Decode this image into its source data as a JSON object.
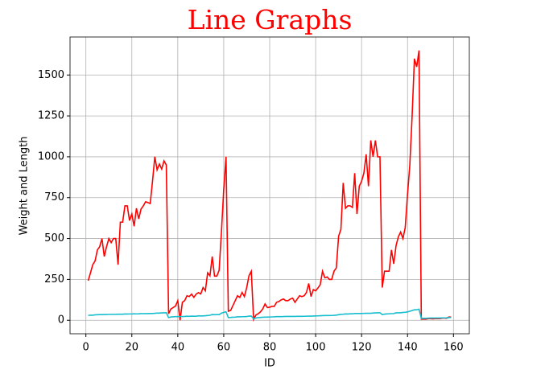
{
  "chart_data": {
    "type": "line",
    "title": "Line Graphs",
    "title_color": "#ff0000",
    "xlabel": "ID",
    "ylabel": "Weight and Length",
    "x": [
      1,
      2,
      3,
      4,
      5,
      6,
      7,
      8,
      9,
      10,
      11,
      12,
      13,
      14,
      15,
      16,
      17,
      18,
      19,
      20,
      21,
      22,
      23,
      24,
      25,
      26,
      27,
      28,
      29,
      30,
      31,
      32,
      33,
      34,
      35,
      36,
      37,
      38,
      39,
      40,
      41,
      42,
      43,
      44,
      45,
      46,
      47,
      48,
      49,
      50,
      51,
      52,
      53,
      54,
      55,
      56,
      57,
      58,
      59,
      60,
      61,
      62,
      63,
      64,
      65,
      66,
      67,
      68,
      69,
      70,
      71,
      72,
      73,
      74,
      75,
      76,
      77,
      78,
      79,
      80,
      81,
      82,
      83,
      84,
      85,
      86,
      87,
      88,
      89,
      90,
      91,
      92,
      93,
      94,
      95,
      96,
      97,
      98,
      99,
      100,
      101,
      102,
      103,
      104,
      105,
      106,
      107,
      108,
      109,
      110,
      111,
      112,
      113,
      114,
      115,
      116,
      117,
      118,
      119,
      120,
      121,
      122,
      123,
      124,
      125,
      126,
      127,
      128,
      129,
      130,
      131,
      132,
      133,
      134,
      135,
      136,
      137,
      138,
      139,
      140,
      141,
      142,
      143,
      144,
      145,
      146,
      147,
      148,
      149,
      150,
      151,
      152,
      153,
      154,
      155,
      156,
      157,
      158,
      159
    ],
    "series": [
      {
        "color": "#ff0000",
        "values": [
          242,
          290,
          340,
          363,
          430,
          450,
          500,
          390,
          450,
          500,
          475,
          500,
          500,
          340,
          600,
          600,
          700,
          700,
          610,
          650,
          575,
          685,
          620,
          680,
          700,
          725,
          720,
          714,
          850,
          1000,
          920,
          955,
          925,
          975,
          950,
          40,
          69,
          78,
          87,
          120,
          0,
          110,
          120,
          150,
          145,
          160,
          140,
          160,
          169,
          161,
          200,
          180,
          290,
          272,
          390,
          270,
          270,
          306,
          540,
          800,
          1000,
          55,
          60,
          90,
          120,
          150,
          140,
          170,
          145,
          200,
          273,
          300,
          5.9,
          32,
          40,
          51.5,
          70,
          100,
          78,
          80,
          85,
          85,
          110,
          115,
          125,
          130,
          120,
          120,
          130,
          135,
          110,
          130,
          150,
          145,
          150,
          170,
          225,
          145,
          188,
          180,
          197,
          218,
          300,
          260,
          265,
          250,
          250,
          300,
          320,
          514,
          556,
          840,
          685,
          700,
          700,
          690,
          900,
          650,
          820,
          850,
          900,
          1015,
          820,
          1100,
          1000,
          1100,
          1000,
          1000,
          200,
          300,
          300,
          300,
          430,
          345,
          456,
          510,
          540,
          500,
          567,
          770,
          950,
          1250,
          1600,
          1550,
          1650,
          6.7,
          7.5,
          7,
          9.7,
          9.8,
          8.7,
          10,
          9.9,
          9.8,
          12.2,
          13.4,
          12.2,
          19.7,
          19.9
        ]
      },
      {
        "color": "#17becf",
        "values": [
          30,
          31.2,
          31.1,
          33.5,
          34,
          34.7,
          34.5,
          35,
          35.1,
          36.2,
          36.2,
          36.2,
          36.4,
          37.3,
          37.2,
          37.2,
          38.3,
          38.5,
          38.6,
          38.7,
          39.5,
          39.2,
          39.7,
          40.6,
          40.5,
          40.9,
          40.6,
          41.5,
          41.6,
          42.6,
          44.1,
          44,
          45.3,
          45.9,
          46.5,
          16.2,
          20.3,
          21.2,
          22.2,
          22.2,
          22.8,
          23.1,
          23.7,
          24.7,
          24.3,
          25.3,
          25,
          25,
          27.2,
          26.7,
          26.8,
          27.9,
          29.2,
          30.6,
          35,
          34,
          34.5,
          34.6,
          43.5,
          48.3,
          51.7,
          16.2,
          17.2,
          18.6,
          19.4,
          21.2,
          21.1,
          22,
          22.3,
          23,
          25.6,
          26.2,
          8.8,
          14.7,
          16,
          17.2,
          18.5,
          19.2,
          19.4,
          20.2,
          20.8,
          21,
          22.5,
          22.5,
          22.5,
          22.8,
          23.5,
          23.5,
          23.5,
          23.5,
          23.5,
          24,
          24,
          24.2,
          24.5,
          25,
          25.5,
          25.5,
          26.2,
          26.5,
          27,
          28,
          28.7,
          28.9,
          28.9,
          28.9,
          29.4,
          30.1,
          31.6,
          34,
          36.5,
          37.3,
          39,
          38.3,
          39.4,
          39.3,
          41.4,
          41.3,
          41.4,
          41.6,
          42.3,
          42.5,
          42.4,
          42.5,
          44.6,
          45.2,
          45.5,
          46,
          34.8,
          37.8,
          38.8,
          39.8,
          40.5,
          41,
          45.5,
          45.5,
          45.8,
          48,
          48.7,
          51.2,
          55.1,
          59.7,
          64,
          64,
          68,
          11.3,
          11.8,
          12.1,
          13.2,
          13.8,
          13.8,
          13.5,
          13.8,
          13.8,
          14.7,
          14.7,
          15,
          16.2,
          17.2
        ]
      }
    ],
    "xlim": [
      -6.9,
      166.9
    ],
    "xticks": [
      0,
      20,
      40,
      60,
      80,
      100,
      120,
      140,
      160
    ],
    "ylim": [
      -82.5,
      1732.5
    ],
    "yticks": [
      0,
      250,
      500,
      750,
      1000,
      1250,
      1500
    ],
    "grid": true
  }
}
